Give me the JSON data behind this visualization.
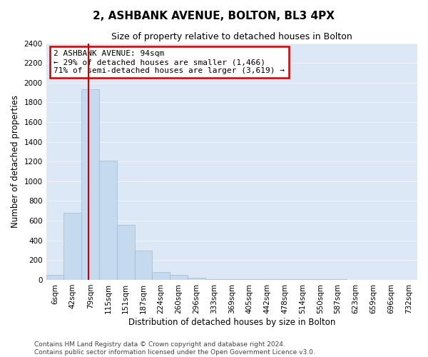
{
  "title": "2, ASHBANK AVENUE, BOLTON, BL3 4PX",
  "subtitle": "Size of property relative to detached houses in Bolton",
  "xlabel": "Distribution of detached houses by size in Bolton",
  "ylabel": "Number of detached properties",
  "categories": [
    "6sqm",
    "42sqm",
    "79sqm",
    "115sqm",
    "151sqm",
    "187sqm",
    "224sqm",
    "260sqm",
    "296sqm",
    "333sqm",
    "369sqm",
    "405sqm",
    "442sqm",
    "478sqm",
    "514sqm",
    "550sqm",
    "587sqm",
    "623sqm",
    "659sqm",
    "696sqm",
    "732sqm"
  ],
  "values": [
    50,
    680,
    1930,
    1210,
    560,
    300,
    80,
    50,
    20,
    10,
    8,
    6,
    5,
    5,
    5,
    5,
    4,
    0,
    0,
    0,
    0
  ],
  "bar_color": "#c5d9ef",
  "bar_edge_color": "#9bbcd8",
  "property_line_color": "#cc0000",
  "property_line_bar_index": 2,
  "annotation_text": "2 ASHBANK AVENUE: 94sqm\n← 29% of detached houses are smaller (1,466)\n71% of semi-detached houses are larger (3,619) →",
  "annotation_box_edgecolor": "#cc0000",
  "ylim_max": 2400,
  "yticks": [
    0,
    200,
    400,
    600,
    800,
    1000,
    1200,
    1400,
    1600,
    1800,
    2000,
    2200,
    2400
  ],
  "ax_bg_color": "#dce8f5",
  "grid_color": "#f0f4fa",
  "fig_bg_color": "#ffffff",
  "title_fontsize": 11,
  "subtitle_fontsize": 9,
  "axis_label_fontsize": 8.5,
  "tick_fontsize": 7.5,
  "annotation_fontsize": 8,
  "footer_fontsize": 6.5,
  "footer_line1": "Contains HM Land Registry data © Crown copyright and database right 2024.",
  "footer_line2": "Contains public sector information licensed under the Open Government Licence v3.0."
}
